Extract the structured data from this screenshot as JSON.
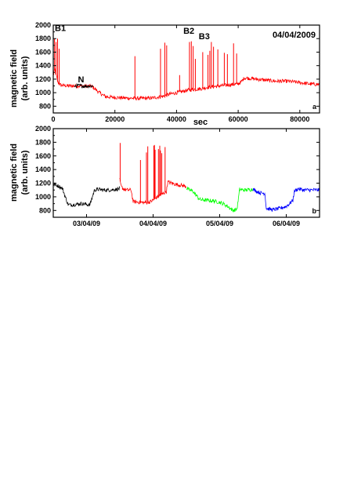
{
  "chart_data": [
    {
      "type": "line",
      "panel_label": "a",
      "title": "04/04/2009",
      "xlabel": "sec",
      "ylabel": "magnetic field (arb. units)",
      "ylabel_lines": [
        "magnetic field",
        "(arb. units)"
      ],
      "xlim": [
        0,
        86400
      ],
      "ylim": [
        700,
        2000
      ],
      "xticks": [
        0,
        20000,
        40000,
        60000,
        80000
      ],
      "xtick_labels": [
        "0",
        "20000",
        "40000",
        "60000",
        "80000"
      ],
      "yticks": [
        800,
        1000,
        1200,
        1400,
        1600,
        1800,
        2000
      ],
      "ytick_labels": [
        "800",
        "1000",
        "1200",
        "1400",
        "1600",
        "1800",
        "2000"
      ],
      "grid": false,
      "annotations": [
        {
          "text": "B1",
          "x": 0,
          "y": 1960
        },
        {
          "text": "N",
          "x": 9000,
          "y": 1200
        },
        {
          "text": "B2",
          "x": 44000,
          "y": 1920
        },
        {
          "text": "B3",
          "x": 49000,
          "y": 1840
        }
      ],
      "series": [
        {
          "color": "#ff0000",
          "x": [
            0,
            500,
            1500,
            2500,
            5000,
            8000,
            12500,
            15000,
            17000,
            20000,
            24000,
            28000,
            32000,
            34000,
            36000,
            38000,
            40000,
            42000,
            44000,
            46000,
            48000,
            50000,
            52000,
            54000,
            56000,
            58000,
            60000,
            61000,
            62000,
            64000,
            68000,
            72000,
            76000,
            80000,
            83000,
            86400
          ],
          "y": [
            1250,
            1350,
            1150,
            1110,
            1100,
            1100,
            1095,
            1000,
            940,
            930,
            920,
            915,
            920,
            935,
            950,
            980,
            1000,
            1020,
            1040,
            1050,
            1060,
            1080,
            1090,
            1100,
            1110,
            1120,
            1130,
            1160,
            1220,
            1210,
            1190,
            1170,
            1170,
            1150,
            1130,
            1120
          ],
          "spikes": [
            {
              "x": 400,
              "y": 1800
            },
            {
              "x": 900,
              "y": 1750
            },
            {
              "x": 1400,
              "y": 1800
            },
            {
              "x": 1900,
              "y": 1650
            },
            {
              "x": 26500,
              "y": 1540
            },
            {
              "x": 34800,
              "y": 1650
            },
            {
              "x": 36200,
              "y": 1740
            },
            {
              "x": 36800,
              "y": 1700
            },
            {
              "x": 41000,
              "y": 1260
            },
            {
              "x": 44200,
              "y": 1750
            },
            {
              "x": 44800,
              "y": 1760
            },
            {
              "x": 45400,
              "y": 1690
            },
            {
              "x": 46100,
              "y": 1500
            },
            {
              "x": 48500,
              "y": 1600
            },
            {
              "x": 50200,
              "y": 1560
            },
            {
              "x": 50800,
              "y": 1620
            },
            {
              "x": 51300,
              "y": 1750
            },
            {
              "x": 52000,
              "y": 1680
            },
            {
              "x": 53400,
              "y": 1640
            },
            {
              "x": 55500,
              "y": 1590
            },
            {
              "x": 56500,
              "y": 1570
            },
            {
              "x": 58500,
              "y": 1730
            },
            {
              "x": 59500,
              "y": 1580
            }
          ]
        },
        {
          "color": "#000000",
          "x": [
            7000,
            8500,
            10000,
            11500,
            13000
          ],
          "y": [
            1100,
            1105,
            1095,
            1100,
            1098
          ]
        }
      ]
    },
    {
      "type": "line",
      "panel_label": "b",
      "xlabel": "",
      "ylabel": "magnetic field (arb. units)",
      "ylabel_lines": [
        "magnetic field",
        "(arb. units)"
      ],
      "xlim": [
        0,
        4
      ],
      "ylim": [
        700,
        2000
      ],
      "xticks": [
        0.5,
        1.5,
        2.5,
        3.5
      ],
      "xtick_labels": [
        "03/04/09",
        "04/04/09",
        "05/04/09",
        "06/04/09"
      ],
      "yticks": [
        800,
        1000,
        1200,
        1400,
        1600,
        1800,
        2000
      ],
      "ytick_labels": [
        "800",
        "1000",
        "1200",
        "1400",
        "1600",
        "1800",
        "2000"
      ],
      "grid": false,
      "series": [
        {
          "color": "#000000",
          "x": [
            0,
            0.08,
            0.14,
            0.18,
            0.22,
            0.26,
            0.34,
            0.42,
            0.5,
            0.55,
            0.62,
            0.68,
            0.75,
            0.85,
            0.95,
            1.0
          ],
          "y": [
            1180,
            1160,
            1120,
            1000,
            890,
            880,
            890,
            900,
            890,
            880,
            1100,
            1110,
            1100,
            1100,
            1110,
            1120
          ],
          "spikes": []
        },
        {
          "color": "#ff0000",
          "x": [
            1.0,
            1.02,
            1.06,
            1.1,
            1.17,
            1.2,
            1.3,
            1.38,
            1.45,
            1.5,
            1.55,
            1.62,
            1.7,
            1.72,
            1.78,
            1.85,
            1.92,
            2.0
          ],
          "y": [
            1250,
            1150,
            1110,
            1100,
            1100,
            930,
            920,
            915,
            925,
            950,
            990,
            1030,
            1080,
            1220,
            1200,
            1180,
            1170,
            1150
          ],
          "spikes": [
            {
              "x": 1.005,
              "y": 1790
            },
            {
              "x": 1.31,
              "y": 1540
            },
            {
              "x": 1.4,
              "y": 1650
            },
            {
              "x": 1.42,
              "y": 1740
            },
            {
              "x": 1.51,
              "y": 1750
            },
            {
              "x": 1.52,
              "y": 1760
            },
            {
              "x": 1.53,
              "y": 1690
            },
            {
              "x": 1.58,
              "y": 1700
            },
            {
              "x": 1.6,
              "y": 1750
            },
            {
              "x": 1.61,
              "y": 1680
            },
            {
              "x": 1.63,
              "y": 1640
            },
            {
              "x": 1.68,
              "y": 1730
            }
          ]
        },
        {
          "color": "#00ff00",
          "x": [
            2.0,
            2.1,
            2.2,
            2.3,
            2.4,
            2.5,
            2.55,
            2.62,
            2.7,
            2.76,
            2.8,
            2.85,
            2.9,
            3.0
          ],
          "y": [
            1120,
            1080,
            960,
            950,
            940,
            920,
            900,
            860,
            800,
            820,
            1110,
            1100,
            1100,
            1110
          ],
          "spikes": []
        },
        {
          "color": "#0000ff",
          "x": [
            3.0,
            3.1,
            3.18,
            3.2,
            3.3,
            3.4,
            3.5,
            3.55,
            3.6,
            3.62,
            3.68,
            3.75,
            3.85,
            4.0
          ],
          "y": [
            1110,
            1060,
            1050,
            830,
            810,
            830,
            860,
            900,
            950,
            1080,
            1120,
            1100,
            1100,
            1100
          ],
          "spikes": []
        }
      ]
    }
  ]
}
